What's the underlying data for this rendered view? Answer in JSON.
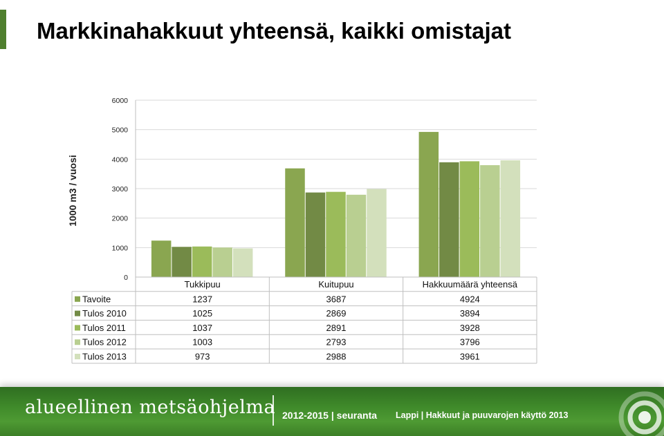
{
  "page": {
    "title": "Markkinahakkuut yhteensä, kaikki omistajat"
  },
  "chart_data": {
    "type": "bar",
    "title": "",
    "xlabel": "",
    "ylabel": "1000 m3 / vuosi",
    "ylim": [
      0,
      6000
    ],
    "yticks": [
      0,
      1000,
      2000,
      3000,
      4000,
      5000,
      6000
    ],
    "grid": true,
    "legend": "data-table-below",
    "categories": [
      "Tukkipuu",
      "Kuitupuu",
      "Hakkuumäärä yhteensä"
    ],
    "series": [
      {
        "name": "Tavoite",
        "values": [
          1237,
          3687,
          4924
        ],
        "color": "#8aa650"
      },
      {
        "name": "Tulos 2010",
        "values": [
          1025,
          2869,
          3894
        ],
        "color": "#728a45"
      },
      {
        "name": "Tulos 2011",
        "values": [
          1037,
          2891,
          3928
        ],
        "color": "#9bbb5a"
      },
      {
        "name": "Tulos 2012",
        "values": [
          1003,
          2793,
          3796
        ],
        "color": "#b9cf91"
      },
      {
        "name": "Tulos 2013",
        "values": [
          973,
          2988,
          3961
        ],
        "color": "#d3e0bc"
      }
    ]
  },
  "footer": {
    "logo_text": "alueellinen metsäohjelma",
    "period": "2012-2015",
    "separator": "|",
    "section": "seuranta",
    "context": "Lappi | Hakkuut ja puuvarojen käyttö  2013"
  },
  "colors": {
    "accent": "#4f7f2e",
    "footer_green": "#3f8a2a"
  }
}
